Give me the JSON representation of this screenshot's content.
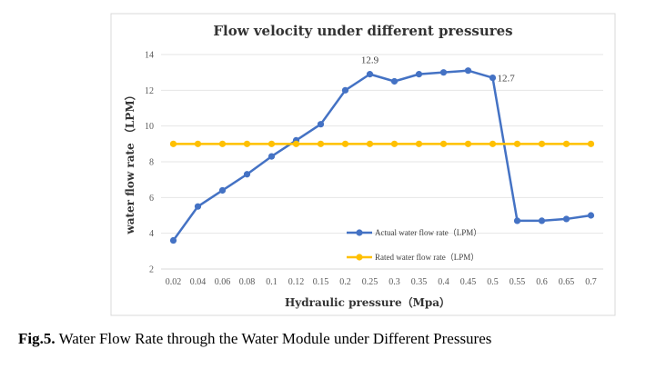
{
  "caption": {
    "label": "Fig.5.",
    "text": "Water Flow Rate through the Water Module under Different Pressures"
  },
  "chart_data": {
    "type": "line",
    "title": "Flow velocity under different pressures",
    "xlabel": "Hydraulic pressure（Mpa）",
    "ylabel": "water flow rate （LPM）",
    "categories": [
      "0.02",
      "0.04",
      "0.06",
      "0.08",
      "0.1",
      "0.12",
      "0.15",
      "0.2",
      "0.25",
      "0.3",
      "0.35",
      "0.4",
      "0.45",
      "0.5",
      "0.55",
      "0.6",
      "0.65",
      "0.7"
    ],
    "ylim": [
      2,
      14
    ],
    "yticks": [
      2,
      4,
      6,
      8,
      10,
      12,
      14
    ],
    "grid": true,
    "legend_position": "bottom-right",
    "series": [
      {
        "name": "Actual water flow rate（LPM）",
        "color": "#4472c4",
        "values": [
          3.6,
          5.5,
          6.4,
          7.3,
          8.3,
          9.2,
          10.1,
          12.0,
          12.9,
          12.5,
          12.9,
          13.0,
          13.1,
          12.7,
          4.7,
          4.7,
          4.8,
          5.0
        ]
      },
      {
        "name": "Rated water flow rate（LPM）",
        "color": "#ffc000",
        "values": [
          9,
          9,
          9,
          9,
          9,
          9,
          9,
          9,
          9,
          9,
          9,
          9,
          9,
          9,
          9,
          9,
          9,
          9
        ]
      }
    ],
    "annotations": [
      {
        "series": 0,
        "index": 8,
        "text": "12.9"
      },
      {
        "series": 0,
        "index": 13,
        "text": "12.7"
      }
    ]
  }
}
